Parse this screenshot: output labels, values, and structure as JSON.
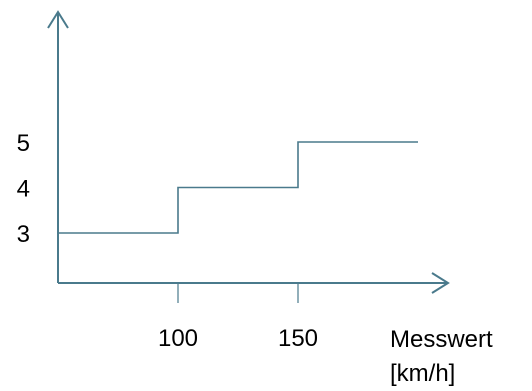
{
  "chart_data": {
    "type": "line",
    "step": true,
    "title": "",
    "xlabel_lines": [
      "Messwert",
      "[km/h]"
    ],
    "ylabel": "",
    "x_ticks": [
      "100",
      "150"
    ],
    "y_ticks": [
      "3",
      "4",
      "5"
    ],
    "series": [
      {
        "x": [
          50,
          100,
          100,
          150,
          150,
          200
        ],
        "y": [
          3,
          3,
          4,
          4,
          5,
          5
        ]
      }
    ],
    "xlim": [
      50,
      215
    ],
    "ylim": [
      2,
      8
    ],
    "grid": false,
    "line_color": "#4a7a8c",
    "axis_color": "#4a7a8c"
  }
}
